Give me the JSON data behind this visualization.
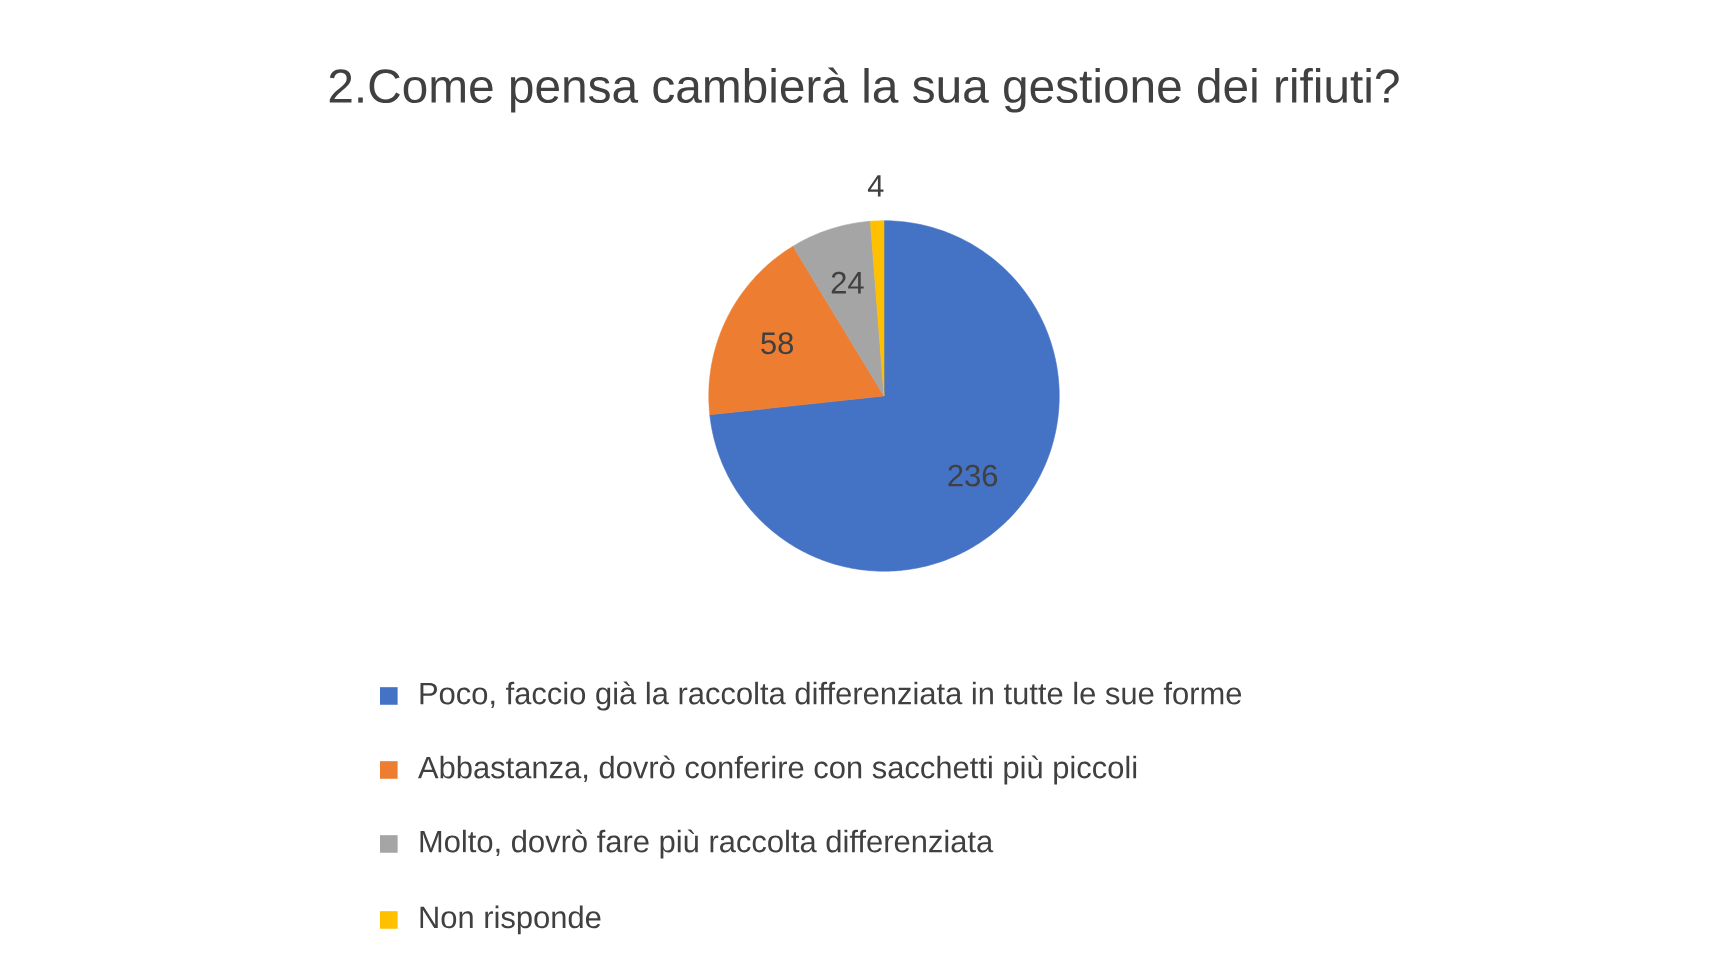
{
  "chart_data": {
    "type": "pie",
    "title": "2.Come pensa cambierà la sua gestione dei rifiuti?",
    "categories": [
      "Poco, faccio già la raccolta differenziata in tutte le sue forme",
      "Abbastanza, dovrò conferire con sacchetti più piccoli",
      "Molto, dovrò fare più raccolta differenziata",
      "Non risponde"
    ],
    "values": [
      236,
      58,
      24,
      4
    ],
    "colors": [
      "#4472c4",
      "#ed7d31",
      "#a5a5a5",
      "#ffc000"
    ],
    "data_labels": true,
    "legend": "bottom"
  }
}
